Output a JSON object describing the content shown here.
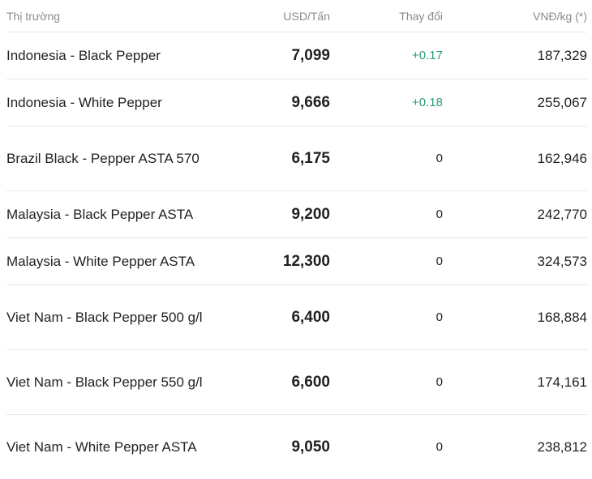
{
  "header": {
    "market": "Thị trường",
    "usd": "USD/Tấn",
    "change": "Thay đổi",
    "vnd": "VNĐ/kg (*)"
  },
  "colors": {
    "positive": "#2a9d78",
    "header_text": "#8a8a8a",
    "divider": "#e7e7e7"
  },
  "rows": [
    {
      "market": "Indonesia - Black Pepper",
      "usd": "7,099",
      "change": "+0.17",
      "vnd": "187,329"
    },
    {
      "market": "Indonesia - White Pepper",
      "usd": "9,666",
      "change": "+0.18",
      "vnd": "255,067"
    },
    {
      "market": "Brazil Black - Pepper ASTA 570",
      "usd": "6,175",
      "change": "0",
      "vnd": "162,946"
    },
    {
      "market": "Malaysia - Black Pepper ASTA",
      "usd": "9,200",
      "change": "0",
      "vnd": "242,770"
    },
    {
      "market": "Malaysia - White Pepper ASTA",
      "usd": "12,300",
      "change": "0",
      "vnd": "324,573"
    },
    {
      "market": "Viet Nam - Black Pepper 500 g/l",
      "usd": "6,400",
      "change": "0",
      "vnd": "168,884"
    },
    {
      "market": "Viet Nam - Black Pepper 550 g/l",
      "usd": "6,600",
      "change": "0",
      "vnd": "174,161"
    },
    {
      "market": "Viet Nam - White Pepper ASTA",
      "usd": "9,050",
      "change": "0",
      "vnd": "238,812"
    }
  ]
}
